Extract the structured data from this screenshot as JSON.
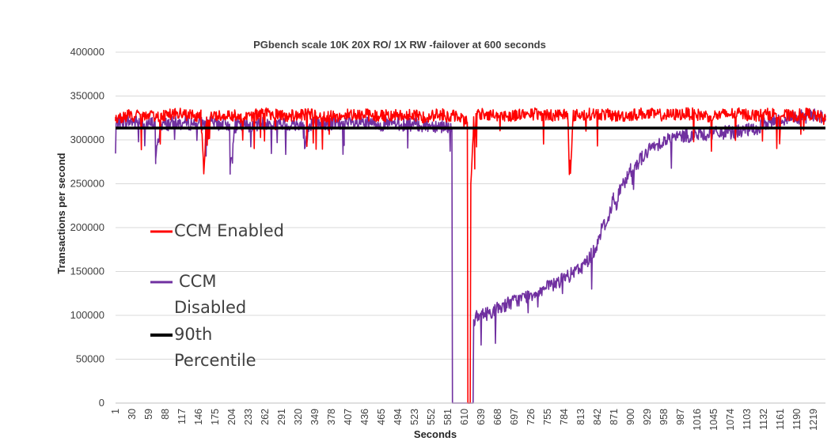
{
  "chart_data": {
    "type": "line",
    "title": "PGbench scale 10K 20X RO/ 1X RW -failover at 600 seconds",
    "xlabel": "Seconds",
    "ylabel": "Transactions per second",
    "ylim": [
      0,
      400000
    ],
    "yticks": [
      0,
      50000,
      100000,
      150000,
      200000,
      250000,
      300000,
      350000,
      400000
    ],
    "xlim": [
      1,
      1240
    ],
    "xticks": [
      1,
      30,
      59,
      88,
      117,
      146,
      175,
      204,
      233,
      262,
      291,
      320,
      349,
      378,
      407,
      436,
      465,
      494,
      523,
      552,
      581,
      610,
      639,
      668,
      697,
      726,
      755,
      784,
      813,
      842,
      871,
      900,
      929,
      958,
      987,
      1016,
      1045,
      1074,
      1103,
      1132,
      1161,
      1190,
      1219
    ],
    "grid": "horizontal",
    "legend_placement": "left-middle",
    "series": [
      {
        "name": "CCM Enabled",
        "color": "#ff0000",
        "x": [
          1,
          20,
          60,
          100,
          150,
          155,
          160,
          200,
          220,
          260,
          300,
          340,
          380,
          420,
          460,
          500,
          540,
          570,
          585,
          590,
          600,
          615,
          616,
          620,
          621,
          625,
          626,
          628,
          630,
          632,
          640,
          680,
          720,
          760,
          790,
          795,
          800,
          840,
          880,
          920,
          960,
          1000,
          1040,
          1080,
          1120,
          1150,
          1180,
          1210,
          1230,
          1240
        ],
        "y": [
          322000,
          328000,
          326000,
          330000,
          327000,
          262000,
          326000,
          329000,
          326000,
          330000,
          327000,
          329000,
          326000,
          330000,
          327000,
          329000,
          326000,
          330000,
          324000,
          328000,
          326000,
          320000,
          0,
          0,
          250000,
          300000,
          325000,
          300000,
          330000,
          328000,
          330000,
          327000,
          330000,
          328000,
          330000,
          262000,
          328000,
          330000,
          327000,
          330000,
          328000,
          330000,
          327000,
          330000,
          328000,
          330000,
          327000,
          330000,
          326000,
          322000
        ]
      },
      {
        "name": "CCM Disabled",
        "color": "#7030a0",
        "x": [
          1,
          2,
          10,
          40,
          60,
          70,
          71,
          80,
          120,
          200,
          201,
          210,
          260,
          330,
          331,
          340,
          400,
          460,
          500,
          540,
          580,
          588,
          589,
          590,
          600,
          625,
          626,
          630,
          640,
          660,
          680,
          700,
          720,
          740,
          760,
          780,
          800,
          820,
          840,
          845,
          850,
          860,
          870,
          875,
          880,
          900,
          920,
          940,
          960,
          980,
          1000,
          1040,
          1080,
          1120,
          1140,
          1180,
          1220,
          1240
        ],
        "y": [
          285000,
          318000,
          322000,
          320000,
          318000,
          320000,
          278000,
          318000,
          319000,
          318000,
          268000,
          316000,
          318000,
          317000,
          290000,
          318000,
          318000,
          318000,
          318000,
          317000,
          316000,
          314000,
          0,
          0,
          0,
          0,
          95000,
          97000,
          100000,
          105000,
          112000,
          117000,
          122000,
          128000,
          133000,
          140000,
          148000,
          158000,
          178000,
          190000,
          200000,
          208000,
          235000,
          220000,
          242000,
          265000,
          280000,
          293000,
          300000,
          303000,
          305000,
          307000,
          309000,
          312000,
          320000,
          325000,
          328000,
          326000
        ]
      },
      {
        "name": "90th Percentile",
        "color": "#000000",
        "x": [
          1,
          1240
        ],
        "y": [
          313500,
          313500
        ]
      }
    ],
    "legend": [
      {
        "label": "CCM Enabled"
      },
      {
        "label": "CCM",
        "label2": "Disabled"
      },
      {
        "label": "90th",
        "label2": "Percentile"
      }
    ]
  }
}
